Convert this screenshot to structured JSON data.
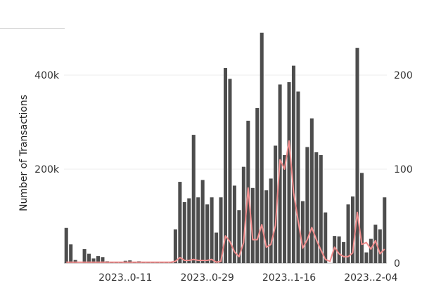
{
  "chart_data": {
    "type": "bar+line",
    "title": "",
    "xlabel": "",
    "ylabel": "Number of Transactions",
    "ylim": [
      0,
      500000
    ],
    "y2lim": [
      0,
      250
    ],
    "y_ticks": [
      {
        "value": 200000,
        "label": "200k"
      },
      {
        "value": 400000,
        "label": "400k"
      }
    ],
    "y2_ticks": [
      {
        "value": 0,
        "label": "0"
      },
      {
        "value": 100,
        "label": "100"
      },
      {
        "value": 200,
        "label": "200"
      }
    ],
    "x_ticks": [
      {
        "index": 13,
        "label": "2023..0-11"
      },
      {
        "index": 31,
        "label": "2023..0-29"
      },
      {
        "index": 49,
        "label": "2023..1-16"
      },
      {
        "index": 67,
        "label": "2023..2-04"
      }
    ],
    "grid": true,
    "bar_color": "#4d4d4d",
    "line_color": "#f28e8e",
    "bar_series": {
      "values": [
        75000,
        40000,
        7000,
        0,
        30000,
        20000,
        10000,
        15000,
        13000,
        4000,
        3000,
        2000,
        1000,
        5000,
        6000,
        3000,
        4000,
        3000,
        2000,
        1000,
        1000,
        2000,
        2000,
        3000,
        72000,
        173000,
        130000,
        138000,
        273000,
        140000,
        177000,
        125000,
        140000,
        65000,
        140000,
        415000,
        392000,
        165000,
        113000,
        205000,
        303000,
        160000,
        330000,
        490000,
        155000,
        180000,
        250000,
        380000,
        230000,
        385000,
        420000,
        365000,
        132000,
        247000,
        308000,
        236000,
        230000,
        108000,
        0,
        58000,
        57000,
        45000,
        125000,
        142000,
        458000,
        192000,
        23000,
        52000,
        82000,
        72000,
        140000
      ]
    },
    "line_series": {
      "values": [
        1,
        1,
        1,
        1,
        1,
        1,
        1,
        1,
        1,
        1,
        1,
        1,
        1,
        1,
        1,
        1,
        1,
        1,
        1,
        1,
        1,
        1,
        1,
        1,
        2,
        6,
        3,
        3,
        4,
        3,
        3,
        3,
        4,
        1,
        2,
        29,
        23,
        12,
        7,
        22,
        80,
        25,
        25,
        41,
        17,
        20,
        40,
        110,
        100,
        130,
        75,
        45,
        16,
        25,
        38,
        25,
        14,
        4,
        2,
        17,
        10,
        7,
        7,
        11,
        54,
        20,
        22,
        15,
        24,
        10,
        15
      ]
    }
  }
}
